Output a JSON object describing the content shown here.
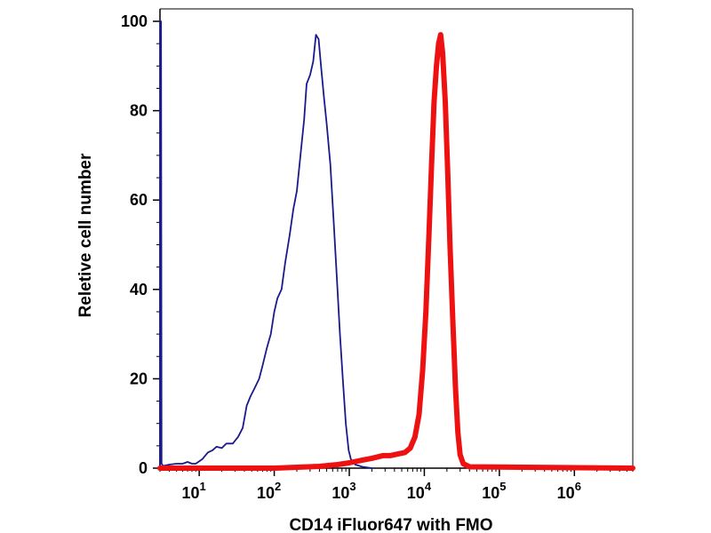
{
  "chart_data": {
    "type": "line",
    "title": "",
    "xlabel": "CD14 iFluor647 with FMO",
    "ylabel": "Reletive cell number",
    "x_scale": "log",
    "xlim": [
      3,
      6000000
    ],
    "ylim": [
      0,
      100
    ],
    "y_ticks": [
      0,
      20,
      40,
      60,
      80,
      100
    ],
    "x_ticks": [
      {
        "value": 10,
        "base": "10",
        "exp": "1"
      },
      {
        "value": 100,
        "base": "10",
        "exp": "2"
      },
      {
        "value": 1000,
        "base": "10",
        "exp": "3"
      },
      {
        "value": 10000,
        "base": "10",
        "exp": "4"
      },
      {
        "value": 100000,
        "base": "10",
        "exp": "5"
      },
      {
        "value": 1000000,
        "base": "10",
        "exp": "6"
      }
    ],
    "grid": false,
    "legend": "none",
    "series": [
      {
        "color": "#1a1a8c",
        "points": [
          [
            3.0,
            0.5
          ],
          [
            3.02,
            100
          ],
          [
            3.1,
            100
          ],
          [
            3.15,
            1
          ],
          [
            3.3,
            0.5
          ],
          [
            4,
            0.8
          ],
          [
            5,
            1
          ],
          [
            6,
            1
          ],
          [
            7,
            1.4
          ],
          [
            8,
            1
          ],
          [
            9,
            1
          ],
          [
            11,
            2
          ],
          [
            13,
            3.5
          ],
          [
            15,
            4
          ],
          [
            17,
            4.8
          ],
          [
            20,
            4.5
          ],
          [
            23,
            5.5
          ],
          [
            28,
            5.5
          ],
          [
            33,
            7
          ],
          [
            38,
            9
          ],
          [
            43,
            14
          ],
          [
            48,
            16
          ],
          [
            55,
            18
          ],
          [
            63,
            20
          ],
          [
            70,
            23
          ],
          [
            80,
            27
          ],
          [
            90,
            30
          ],
          [
            100,
            35
          ],
          [
            110,
            38
          ],
          [
            125,
            40
          ],
          [
            140,
            46
          ],
          [
            160,
            52
          ],
          [
            180,
            58
          ],
          [
            200,
            62
          ],
          [
            230,
            72
          ],
          [
            250,
            78
          ],
          [
            270,
            86
          ],
          [
            300,
            88
          ],
          [
            330,
            91
          ],
          [
            360,
            97
          ],
          [
            390,
            96
          ],
          [
            420,
            90
          ],
          [
            460,
            83
          ],
          [
            500,
            77
          ],
          [
            560,
            68
          ],
          [
            620,
            55
          ],
          [
            680,
            43
          ],
          [
            750,
            30
          ],
          [
            820,
            20
          ],
          [
            900,
            10
          ],
          [
            980,
            4
          ],
          [
            1050,
            2
          ],
          [
            1200,
            0.8
          ],
          [
            1500,
            0.3
          ],
          [
            2000,
            0
          ]
        ]
      },
      {
        "color": "#ee1111",
        "points": [
          [
            3,
            0
          ],
          [
            100,
            0
          ],
          [
            200,
            0.2
          ],
          [
            400,
            0.4
          ],
          [
            700,
            0.8
          ],
          [
            1000,
            1.2
          ],
          [
            1500,
            1.8
          ],
          [
            2000,
            2.2
          ],
          [
            2800,
            2.8
          ],
          [
            3500,
            2.8
          ],
          [
            4500,
            3.2
          ],
          [
            5500,
            3.5
          ],
          [
            6500,
            4.5
          ],
          [
            7500,
            7
          ],
          [
            8500,
            12
          ],
          [
            9500,
            22
          ],
          [
            10500,
            35
          ],
          [
            11500,
            52
          ],
          [
            12500,
            68
          ],
          [
            13500,
            82
          ],
          [
            14500,
            90
          ],
          [
            15500,
            95
          ],
          [
            16500,
            97
          ],
          [
            17500,
            93
          ],
          [
            19000,
            82
          ],
          [
            20500,
            66
          ],
          [
            22000,
            50
          ],
          [
            24000,
            33
          ],
          [
            26000,
            18
          ],
          [
            28000,
            8
          ],
          [
            30000,
            3
          ],
          [
            33000,
            1
          ],
          [
            40000,
            0.3
          ],
          [
            6000000,
            0
          ]
        ]
      }
    ]
  }
}
